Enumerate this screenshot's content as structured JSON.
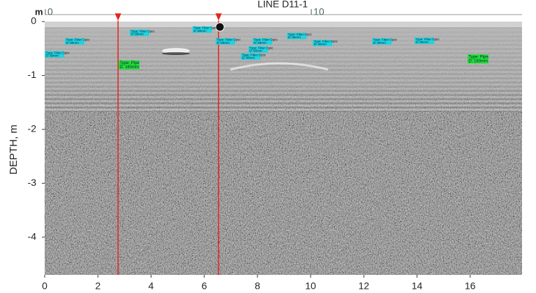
{
  "chart_data": {
    "type": "radargram",
    "title": "LINE D11-1",
    "y_label": "DEPTH, m",
    "x_unit_label": "m",
    "xlim": [
      0,
      17.95
    ],
    "ylim": [
      0,
      -4.7
    ],
    "xticks": [
      0,
      2,
      4,
      6,
      8,
      10,
      12,
      14,
      16
    ],
    "yticks": [
      0,
      -1,
      -2,
      -3,
      -4
    ],
    "top_ticks": [
      0,
      10
    ],
    "grid": false,
    "marker_color": "#e8231c",
    "markers": [
      {
        "x": 2.76
      },
      {
        "x": 6.54
      }
    ],
    "target": {
      "x": 6.59,
      "y": -0.1
    },
    "annotations": [
      {
        "lines": [
          "Type: Fiber Optic",
          "D: 80mm"
        ],
        "x": 0.76,
        "y": -0.31,
        "color": "#1fd3e0"
      },
      {
        "lines": [
          "Type: Fiber Optic",
          "D: 80mm"
        ],
        "x": 3.2,
        "y": -0.15,
        "color": "#1fd3e0"
      },
      {
        "lines": [
          "Type: Fiber Optic",
          "D: 80mm"
        ],
        "x": 5.56,
        "y": -0.09,
        "color": "#1fd3e0"
      },
      {
        "lines": [
          "Type: Fiber Optic",
          "D: 80mm"
        ],
        "x": 6.43,
        "y": -0.31,
        "color": "#1fd3e0"
      },
      {
        "lines": [
          "Type: Fiber Optic",
          "D: 80mm"
        ],
        "x": 7.82,
        "y": -0.31,
        "color": "#1fd3e0"
      },
      {
        "lines": [
          "Type: Fiber Optic",
          "D: 80mm"
        ],
        "x": 7.66,
        "y": -0.46,
        "color": "#1fd3e0"
      },
      {
        "lines": [
          "Type: Fiber Optic",
          "D: 80mm"
        ],
        "x": 7.38,
        "y": -0.59,
        "color": "#1fd3e0"
      },
      {
        "lines": [
          "Type: Fiber Optic",
          "D: 80mm"
        ],
        "x": 9.11,
        "y": -0.21,
        "color": "#1fd3e0"
      },
      {
        "lines": [
          "Type: Fiber Optic",
          "D: 80mm"
        ],
        "x": 10.08,
        "y": -0.34,
        "color": "#1fd3e0"
      },
      {
        "lines": [
          "Type: Fiber Optic",
          "D: 80mm"
        ],
        "x": 12.31,
        "y": -0.31,
        "color": "#1fd3e0"
      },
      {
        "lines": [
          "Type: Fiber Optic",
          "D: 80mm"
        ],
        "x": 13.91,
        "y": -0.3,
        "color": "#1fd3e0"
      },
      {
        "lines": [
          "Type: Fiber Optic",
          "D: 80mm"
        ],
        "x": 0,
        "y": -0.55,
        "color": "#1fd3e0"
      },
      {
        "lines": [
          "Type: Pipe",
          "D: 160mm"
        ],
        "x": 2.78,
        "y": -0.72,
        "color": "#22e03a"
      },
      {
        "lines": [
          "Type: Pipe",
          "D: 160mm"
        ],
        "x": 15.9,
        "y": -0.61,
        "color": "#22e03a"
      }
    ]
  }
}
